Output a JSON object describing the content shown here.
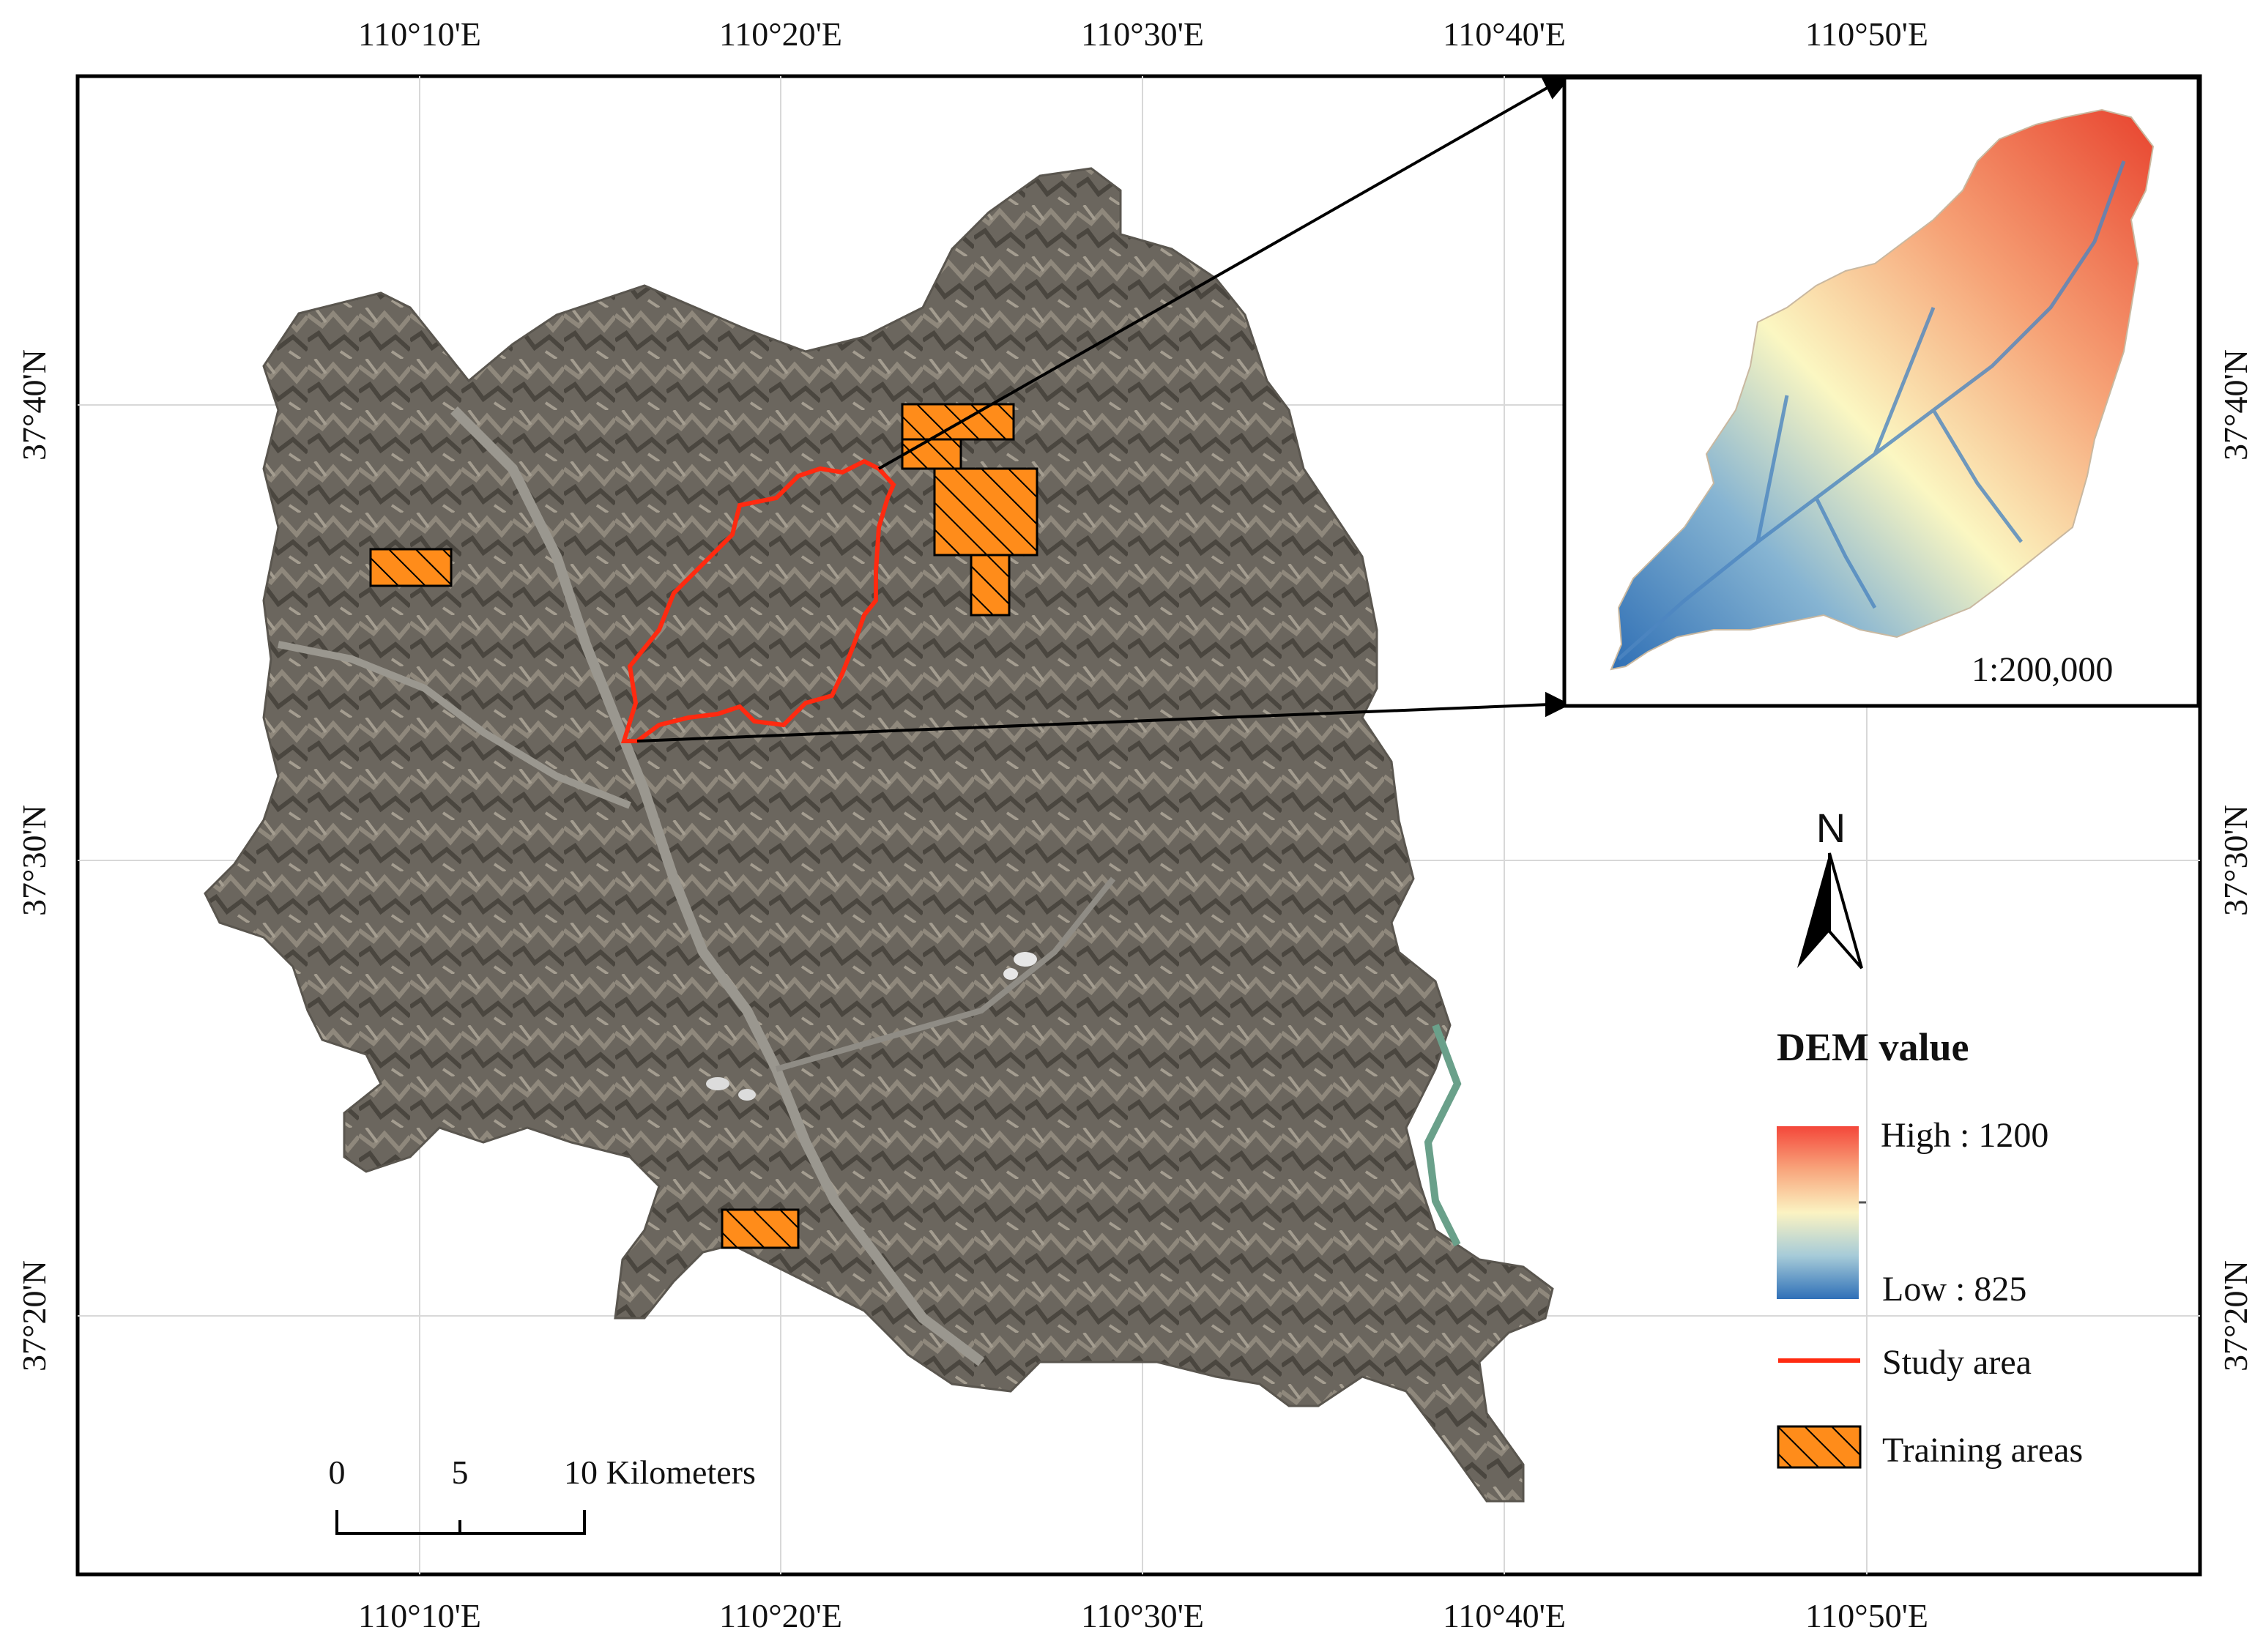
{
  "top_longitude_labels": [
    "110°10'E",
    "110°20'E",
    "110°30'E",
    "110°40'E",
    "110°50'E"
  ],
  "bottom_longitude_labels": [
    "110°10'E",
    "110°20'E",
    "110°30'E",
    "110°40'E",
    "110°50'E"
  ],
  "left_latitude_labels": [
    "37°40'N",
    "37°30'N",
    "37°20'N"
  ],
  "right_latitude_labels": [
    "37°40'N",
    "37°30'N",
    "37°20'N"
  ],
  "inset": {
    "scale_label": "1:200,000"
  },
  "north_arrow": {
    "label": "N"
  },
  "legend": {
    "title": "DEM value",
    "high_label": "High : 1200",
    "low_label": "Low : 825",
    "study_area_label": "Study area",
    "training_areas_label": "Training areas"
  },
  "scale_bar": {
    "ticks": [
      "0",
      "5",
      "10 Kilometers"
    ]
  },
  "colors": {
    "study_area": "#ff2a10",
    "training_fill": "#ff8c1a",
    "dem_high": "#e8432e",
    "dem_mid": "#fbf7c2",
    "dem_low": "#2f6fb5",
    "imagery_base": "#6f6a62"
  }
}
